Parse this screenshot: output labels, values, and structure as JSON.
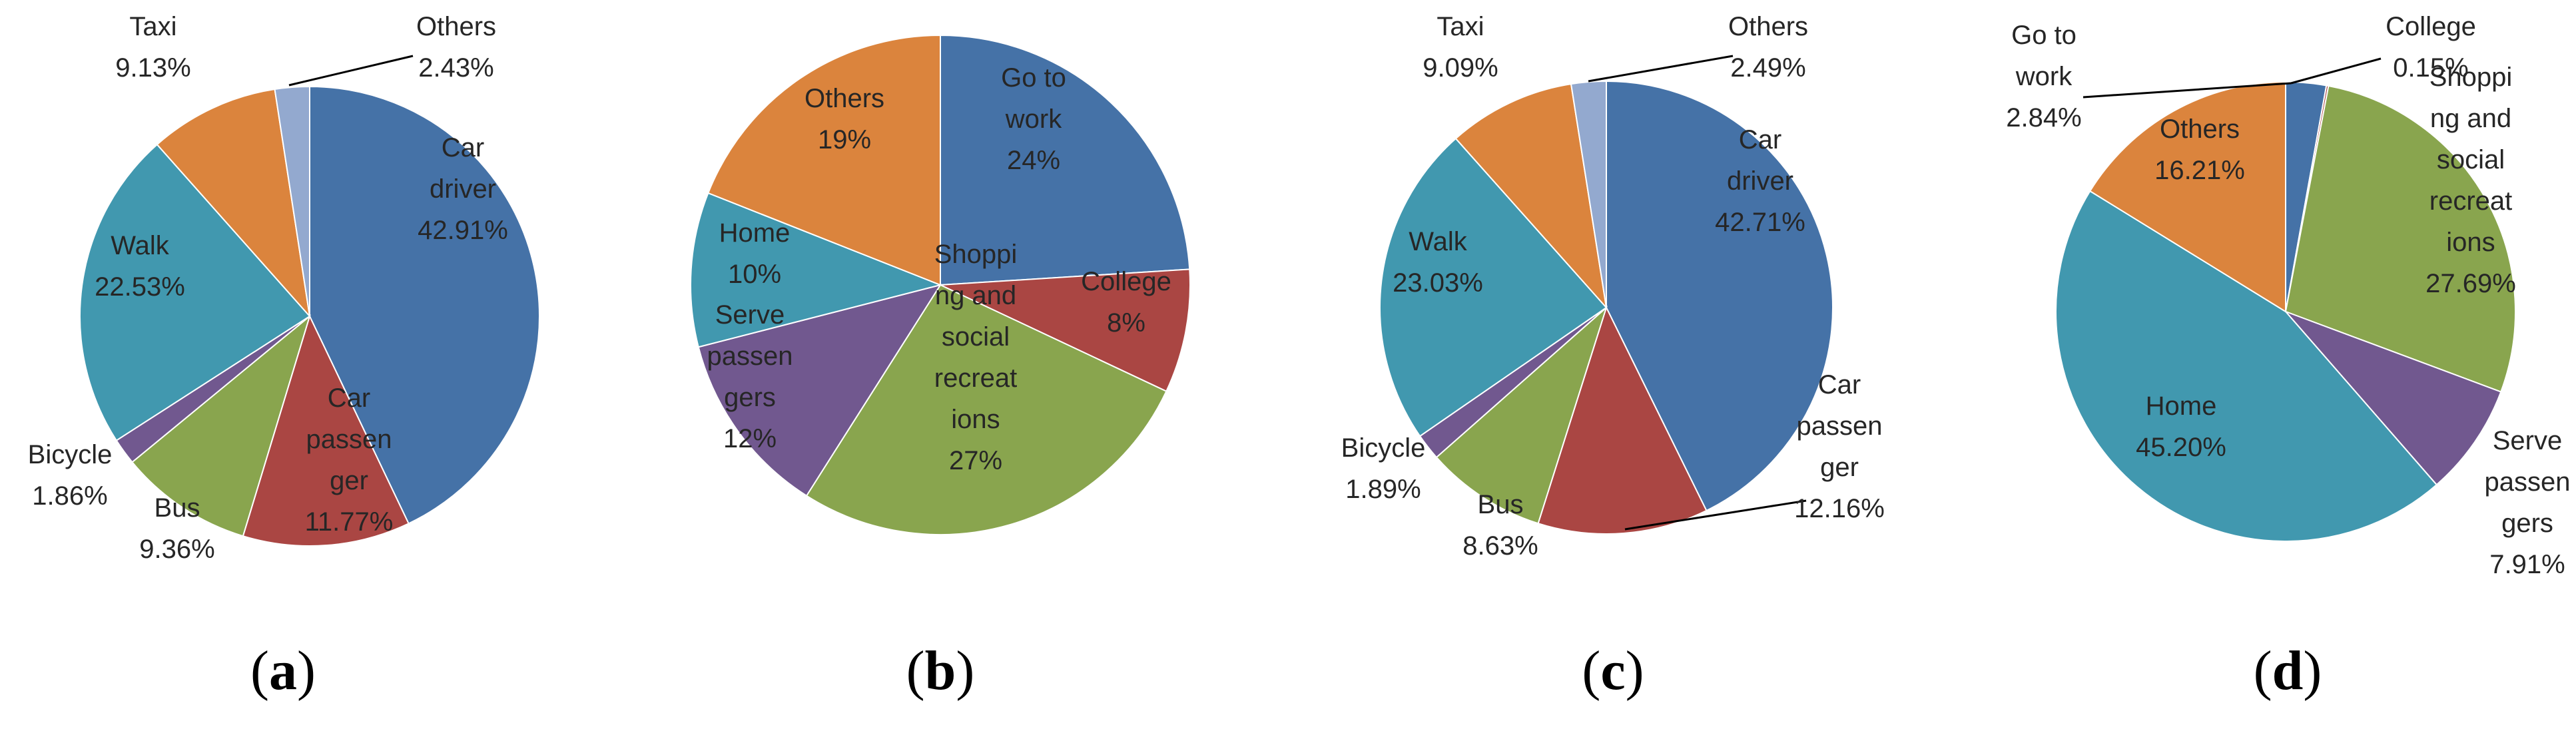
{
  "chart_data": [
    {
      "type": "pie",
      "panel": "a",
      "title": "",
      "start_angle_deg": 0,
      "clockwise": true,
      "slices": [
        {
          "label": "Car driver",
          "label_lines": [
            "Car",
            "driver"
          ],
          "value_text": "42.91%",
          "value": 42.91,
          "color": "#4572A7"
        },
        {
          "label": "Car passenger",
          "label_lines": [
            "Car",
            "passen",
            "ger"
          ],
          "value_text": "11.77%",
          "value": 11.77,
          "color": "#AA4643"
        },
        {
          "label": "Bus",
          "label_lines": [
            "Bus"
          ],
          "value_text": "9.36%",
          "value": 9.36,
          "color": "#89A54E"
        },
        {
          "label": "Bicycle",
          "label_lines": [
            "Bicycle"
          ],
          "value_text": "1.86%",
          "value": 1.86,
          "color": "#71588F"
        },
        {
          "label": "Walk",
          "label_lines": [
            "Walk"
          ],
          "value_text": "22.53%",
          "value": 22.53,
          "color": "#4198AF"
        },
        {
          "label": "Taxi",
          "label_lines": [
            "Taxi"
          ],
          "value_text": "9.13%",
          "value": 9.13,
          "color": "#DB843D"
        },
        {
          "label": "Others",
          "label_lines": [
            "Others"
          ],
          "value_text": "2.43%",
          "value": 2.43,
          "color": "#93A9CF"
        }
      ]
    },
    {
      "type": "pie",
      "panel": "b",
      "title": "",
      "start_angle_deg": 0,
      "clockwise": true,
      "slices": [
        {
          "label": "Go to work",
          "label_lines": [
            "Go to",
            "work"
          ],
          "value_text": "24%",
          "value": 24,
          "color": "#4572A7"
        },
        {
          "label": "College",
          "label_lines": [
            "College"
          ],
          "value_text": "8%",
          "value": 8,
          "color": "#AA4643"
        },
        {
          "label": "Shopping and social recreations",
          "label_lines": [
            "Shoppi",
            "ng and",
            "social",
            "recreat",
            "ions"
          ],
          "value_text": "27%",
          "value": 27,
          "color": "#89A54E"
        },
        {
          "label": "Serve passengers",
          "label_lines": [
            "Serve",
            "passen",
            "gers"
          ],
          "value_text": "12%",
          "value": 12,
          "color": "#71588F"
        },
        {
          "label": "Home",
          "label_lines": [
            "Home"
          ],
          "value_text": "10%",
          "value": 10,
          "color": "#4198AF"
        },
        {
          "label": "Others",
          "label_lines": [
            "Others"
          ],
          "value_text": "19%",
          "value": 19,
          "color": "#DB843D"
        }
      ]
    },
    {
      "type": "pie",
      "panel": "c",
      "title": "",
      "start_angle_deg": 0,
      "clockwise": true,
      "slices": [
        {
          "label": "Car driver",
          "label_lines": [
            "Car",
            "driver"
          ],
          "value_text": "42.71%",
          "value": 42.71,
          "color": "#4572A7"
        },
        {
          "label": "Car passenger",
          "label_lines": [
            "Car",
            "passen",
            "ger"
          ],
          "value_text": "12.16%",
          "value": 12.16,
          "color": "#AA4643"
        },
        {
          "label": "Bus",
          "label_lines": [
            "Bus"
          ],
          "value_text": "8.63%",
          "value": 8.63,
          "color": "#89A54E"
        },
        {
          "label": "Bicycle",
          "label_lines": [
            "Bicycle"
          ],
          "value_text": "1.89%",
          "value": 1.89,
          "color": "#71588F"
        },
        {
          "label": "Walk",
          "label_lines": [
            "Walk"
          ],
          "value_text": "23.03%",
          "value": 23.03,
          "color": "#4198AF"
        },
        {
          "label": "Taxi",
          "label_lines": [
            "Taxi"
          ],
          "value_text": "9.09%",
          "value": 9.09,
          "color": "#DB843D"
        },
        {
          "label": "Others",
          "label_lines": [
            "Others"
          ],
          "value_text": "2.49%",
          "value": 2.49,
          "color": "#93A9CF"
        }
      ]
    },
    {
      "type": "pie",
      "panel": "d",
      "title": "",
      "start_angle_deg": 0,
      "clockwise": true,
      "slices": [
        {
          "label": "Go to work",
          "label_lines": [
            "Go to",
            "work"
          ],
          "value_text": "2.84%",
          "value": 2.84,
          "color": "#4572A7"
        },
        {
          "label": "College",
          "label_lines": [
            "College"
          ],
          "value_text": "0.15%",
          "value": 0.15,
          "color": "#AA4643"
        },
        {
          "label": "Shopping and social recreations",
          "label_lines": [
            "Shoppi",
            "ng and",
            "social",
            "recreat",
            "ions"
          ],
          "value_text": "27.69%",
          "value": 27.69,
          "color": "#89A54E"
        },
        {
          "label": "Serve passengers",
          "label_lines": [
            "Serve",
            "passen",
            "gers"
          ],
          "value_text": "7.91%",
          "value": 7.91,
          "color": "#71588F"
        },
        {
          "label": "Home",
          "label_lines": [
            "Home"
          ],
          "value_text": "45.20%",
          "value": 45.2,
          "color": "#4198AF"
        },
        {
          "label": "Others",
          "label_lines": [
            "Others"
          ],
          "value_text": "16.21%",
          "value": 16.21,
          "color": "#DB843D"
        }
      ]
    }
  ],
  "panel_labels": [
    "(a)",
    "(b)",
    "(c)",
    "(d)"
  ],
  "panel_letters": [
    "a",
    "b",
    "c",
    "d"
  ]
}
